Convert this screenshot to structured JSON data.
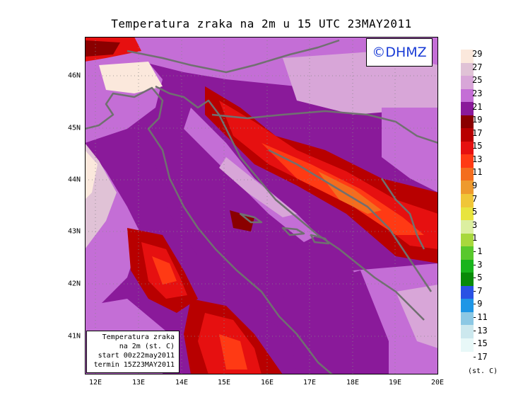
{
  "title": "Temperatura zraka na 2m u 15 UTC 23MAY2011",
  "logo": "©DHMZ",
  "info_box": [
    "Temperatura zraka",
    "na 2m (st. C)",
    "start 00z22may2011",
    "termin 15Z23MAY2011"
  ],
  "axes": {
    "lat_labels": [
      "46N",
      "45N",
      "44N",
      "43N",
      "42N",
      "41N"
    ],
    "lat_values": [
      46,
      45,
      44,
      43,
      42,
      41
    ],
    "lon_labels": [
      "12E",
      "13E",
      "14E",
      "15E",
      "16E",
      "17E",
      "18E",
      "19E",
      "20E"
    ],
    "lon_values": [
      12,
      13,
      14,
      15,
      16,
      17,
      18,
      19,
      20
    ],
    "lat_range": [
      40.3,
      46.75
    ],
    "lon_range": [
      11.95,
      20.0
    ]
  },
  "legend": {
    "unit": "(st. C)",
    "labels": [
      "29",
      "27",
      "25",
      "23",
      "21",
      "19",
      "17",
      "15",
      "13",
      "11",
      "9",
      "7",
      "5",
      "3",
      "1",
      "-1",
      "-3",
      "-5",
      "-7",
      "-9",
      "-11",
      "-13",
      "-15",
      "-17"
    ],
    "colors": [
      "#fbe8dc",
      "#e0c2d6",
      "#d8a6d8",
      "#c46ed6",
      "#8a1a9a",
      "#8a0000",
      "#b80000",
      "#e61010",
      "#ff3a14",
      "#f46d1e",
      "#ee9a2e",
      "#f0c638",
      "#e8e43e",
      "#dcefa0",
      "#a8d83c",
      "#58c82c",
      "#18b41c",
      "#088a08",
      "#2a52e4",
      "#1e96e6",
      "#8cc8e4",
      "#cce8ee",
      "#e8f8f8"
    ]
  }
}
